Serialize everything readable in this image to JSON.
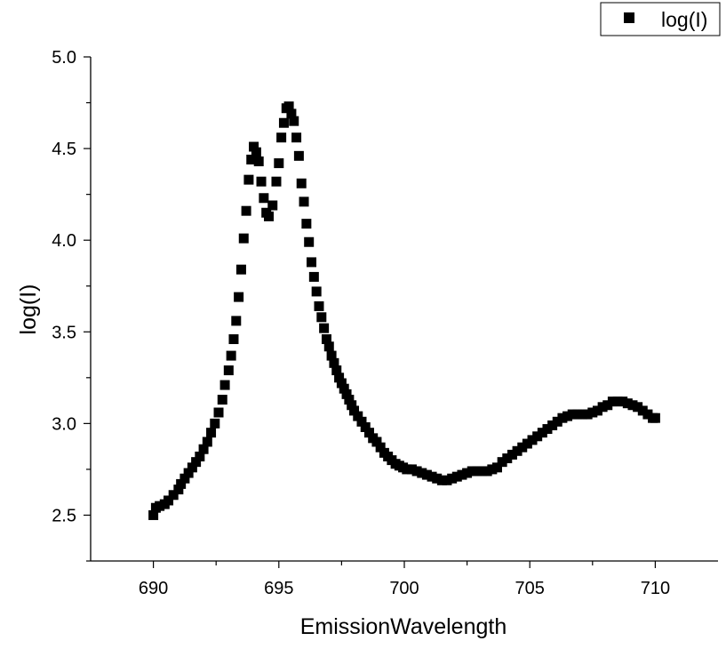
{
  "chart_data": {
    "type": "scatter",
    "xlabel": "EmissionWavelength",
    "ylabel": "log(I)",
    "xlim": [
      687.5,
      712.5
    ],
    "ylim": [
      2.25,
      5.0
    ],
    "xticks": [
      690,
      695,
      700,
      705,
      710
    ],
    "yticks": [
      2.5,
      3.0,
      3.5,
      4.0,
      4.5,
      5.0
    ],
    "xtick_labels": [
      "690",
      "695",
      "700",
      "705",
      "710"
    ],
    "ytick_labels": [
      "2.5",
      "3.0",
      "3.5",
      "4.0",
      "4.5",
      "5.0"
    ],
    "grid": false,
    "legend_position": "top-right",
    "marker": "square",
    "marker_color": "#000000",
    "series": [
      {
        "name": "log(I)",
        "x": [
          690.0,
          690.1,
          690.25,
          690.45,
          690.6,
          690.8,
          691.0,
          691.1,
          691.25,
          691.4,
          691.55,
          691.7,
          691.85,
          692.0,
          692.15,
          692.3,
          692.45,
          692.6,
          692.75,
          692.85,
          693.0,
          693.1,
          693.2,
          693.3,
          693.4,
          693.5,
          693.6,
          693.7,
          693.8,
          693.9,
          694.0,
          694.1,
          694.2,
          694.3,
          694.4,
          694.5,
          694.6,
          694.75,
          694.9,
          695.0,
          695.1,
          695.2,
          695.3,
          695.4,
          695.5,
          695.6,
          695.7,
          695.8,
          695.9,
          696.0,
          696.1,
          696.2,
          696.3,
          696.4,
          696.5,
          696.6,
          696.7,
          696.8,
          696.9,
          697.0,
          697.1,
          697.2,
          697.3,
          697.4,
          697.5,
          697.6,
          697.7,
          697.8,
          697.9,
          698.0,
          698.15,
          698.3,
          698.45,
          698.6,
          698.75,
          698.9,
          699.05,
          699.2,
          699.35,
          699.5,
          699.65,
          699.8,
          699.95,
          700.1,
          700.3,
          700.5,
          700.7,
          700.9,
          701.1,
          701.3,
          701.5,
          701.7,
          701.9,
          702.1,
          702.3,
          702.5,
          702.7,
          702.9,
          703.1,
          703.3,
          703.5,
          703.7,
          703.9,
          704.1,
          704.3,
          704.5,
          704.7,
          704.9,
          705.1,
          705.3,
          705.5,
          705.7,
          705.9,
          706.1,
          706.3,
          706.5,
          706.7,
          706.9,
          707.1,
          707.3,
          707.5,
          707.7,
          707.9,
          708.1,
          708.3,
          708.5,
          708.7,
          708.9,
          709.1,
          709.3,
          709.5,
          709.7,
          709.9,
          710.0
        ],
        "y": [
          2.5,
          2.54,
          2.55,
          2.56,
          2.58,
          2.61,
          2.64,
          2.67,
          2.7,
          2.73,
          2.76,
          2.79,
          2.82,
          2.86,
          2.9,
          2.95,
          3.0,
          3.06,
          3.13,
          3.21,
          3.29,
          3.37,
          3.46,
          3.56,
          3.69,
          3.84,
          4.01,
          4.16,
          4.33,
          4.44,
          4.51,
          4.48,
          4.43,
          4.32,
          4.23,
          4.15,
          4.13,
          4.19,
          4.32,
          4.42,
          4.56,
          4.64,
          4.72,
          4.73,
          4.69,
          4.65,
          4.56,
          4.46,
          4.31,
          4.21,
          4.09,
          3.99,
          3.88,
          3.8,
          3.72,
          3.64,
          3.58,
          3.52,
          3.46,
          3.42,
          3.37,
          3.33,
          3.29,
          3.25,
          3.22,
          3.19,
          3.16,
          3.13,
          3.1,
          3.07,
          3.04,
          3.01,
          2.98,
          2.95,
          2.92,
          2.9,
          2.87,
          2.84,
          2.82,
          2.8,
          2.78,
          2.77,
          2.76,
          2.75,
          2.75,
          2.74,
          2.73,
          2.72,
          2.71,
          2.7,
          2.69,
          2.69,
          2.7,
          2.71,
          2.72,
          2.73,
          2.74,
          2.74,
          2.74,
          2.74,
          2.75,
          2.76,
          2.79,
          2.81,
          2.83,
          2.85,
          2.87,
          2.89,
          2.91,
          2.93,
          2.95,
          2.97,
          2.99,
          3.01,
          3.03,
          3.04,
          3.05,
          3.05,
          3.05,
          3.05,
          3.06,
          3.07,
          3.09,
          3.1,
          3.12,
          3.12,
          3.12,
          3.11,
          3.1,
          3.09,
          3.07,
          3.05,
          3.03,
          3.03
        ]
      }
    ]
  }
}
